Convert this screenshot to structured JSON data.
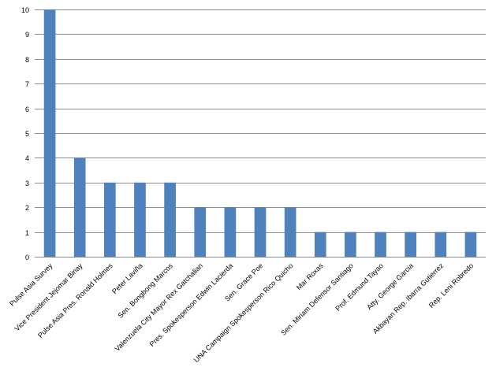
{
  "chart_data": {
    "type": "bar",
    "title": "",
    "xlabel": "",
    "ylabel": "",
    "ylim": [
      0,
      10
    ],
    "yticks": [
      0,
      1,
      2,
      3,
      4,
      5,
      6,
      7,
      8,
      9,
      10
    ],
    "grid": true,
    "legend": "none",
    "bar_color": "#4f81bd",
    "grid_color": "#8c8c8c",
    "categories": [
      "Pulse Asia Survey",
      "Vice President Jejomar Binay",
      "Pulse Asia Pres. Ronald Holmes",
      "Peter Laviña",
      "Sen. Bongbong Marcos",
      "Valenzuela City Mayor Rex Gatchalian",
      "Pres. Spokesperson Edwin Lacierda",
      "Sen. Grace Poe",
      "UNA Campaign Spokesperson Rico Quicho",
      "Mar Roxas",
      "Sen. Miriam Defensor Santiago",
      "Prof. Edmund Tayao",
      "Atty. George Garcia",
      "Akbayan Rep. Ibarra Gutierrez",
      "Rep. Leni Robredo"
    ],
    "values": [
      10,
      4,
      3,
      3,
      3,
      2,
      2,
      2,
      2,
      1,
      1,
      1,
      1,
      1,
      1
    ]
  }
}
